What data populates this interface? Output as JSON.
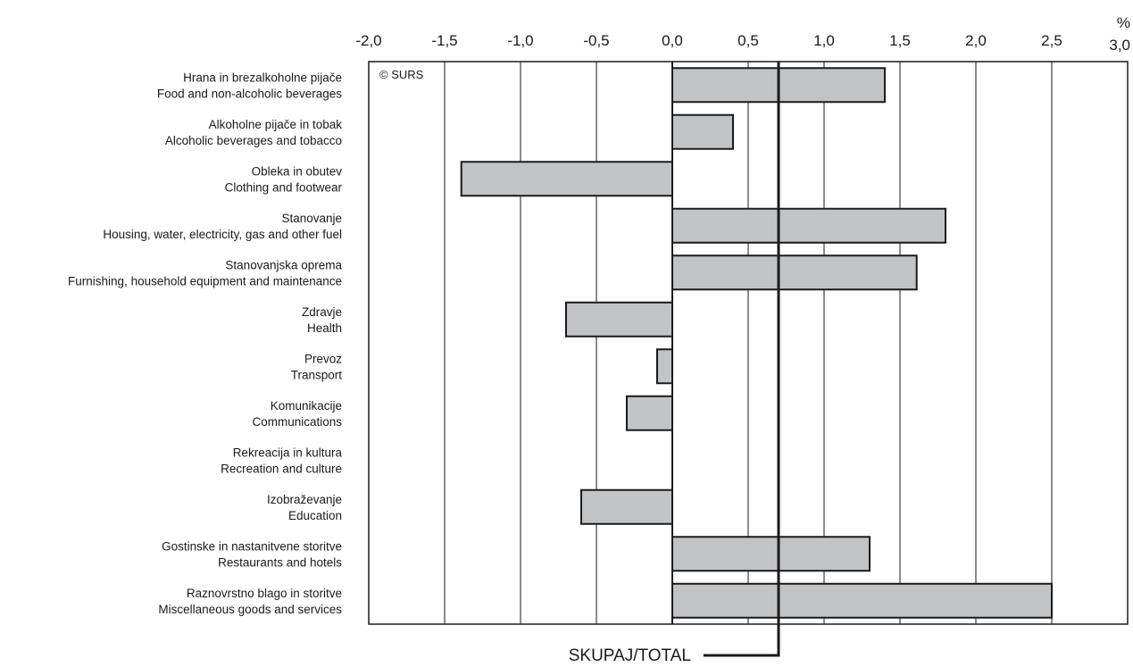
{
  "chart_data": {
    "type": "bar",
    "orientation": "horizontal",
    "unit": "%",
    "copyright": "© SURS",
    "categories": [
      {
        "sl": "Hrana in brezalkoholne pijače",
        "en": "Food and non-alcoholic beverages",
        "value": 1.4
      },
      {
        "sl": "Alkoholne pijače in tobak",
        "en": "Alcoholic beverages and tobacco",
        "value": 0.4
      },
      {
        "sl": "Obleka in obutev",
        "en": "Clothing and footwear",
        "value": -1.39
      },
      {
        "sl": "Stanovanje",
        "en": "Housing, water, electricity, gas and other fuel",
        "value": 1.8
      },
      {
        "sl": "Stanovanjska oprema",
        "en": "Furnishing, household equipment and maintenance",
        "value": 1.61
      },
      {
        "sl": "Zdravje",
        "en": "Health",
        "value": -0.7
      },
      {
        "sl": "Prevoz",
        "en": "Transport",
        "value": -0.1
      },
      {
        "sl": "Komunikacije",
        "en": "Communications",
        "value": -0.3
      },
      {
        "sl": "Rekreacija in kultura",
        "en": "Recreation and culture",
        "value": 0.0
      },
      {
        "sl": "Izobraževanje",
        "en": "Education",
        "value": -0.6
      },
      {
        "sl": "Gostinske in nastanitvene storitve",
        "en": "Restaurants and hotels",
        "value": 1.3
      },
      {
        "sl": "Raznovrstno blago in storitve",
        "en": "Miscellaneous goods and services",
        "value": 2.5
      }
    ],
    "x_ticks": [
      -2.0,
      -1.5,
      -1.0,
      -0.5,
      0.0,
      0.5,
      1.0,
      1.5,
      2.0,
      2.5,
      3.0
    ],
    "x_tick_labels": [
      "-2,0",
      "-1,5",
      "-1,0",
      "-0,5",
      "0,0",
      "0,5",
      "1,0",
      "1,5",
      "2,0",
      "2,5",
      "3,0"
    ],
    "xlim": [
      -2.0,
      3.0
    ],
    "grid": true,
    "total": {
      "label": "SKUPAJ/TOTAL",
      "value": 0.7
    },
    "colors": {
      "bar_fill": "#c1c3c5",
      "bar_stroke": "#1a1a1a",
      "grid": "#1a1a1a",
      "background": "#ffffff"
    }
  }
}
